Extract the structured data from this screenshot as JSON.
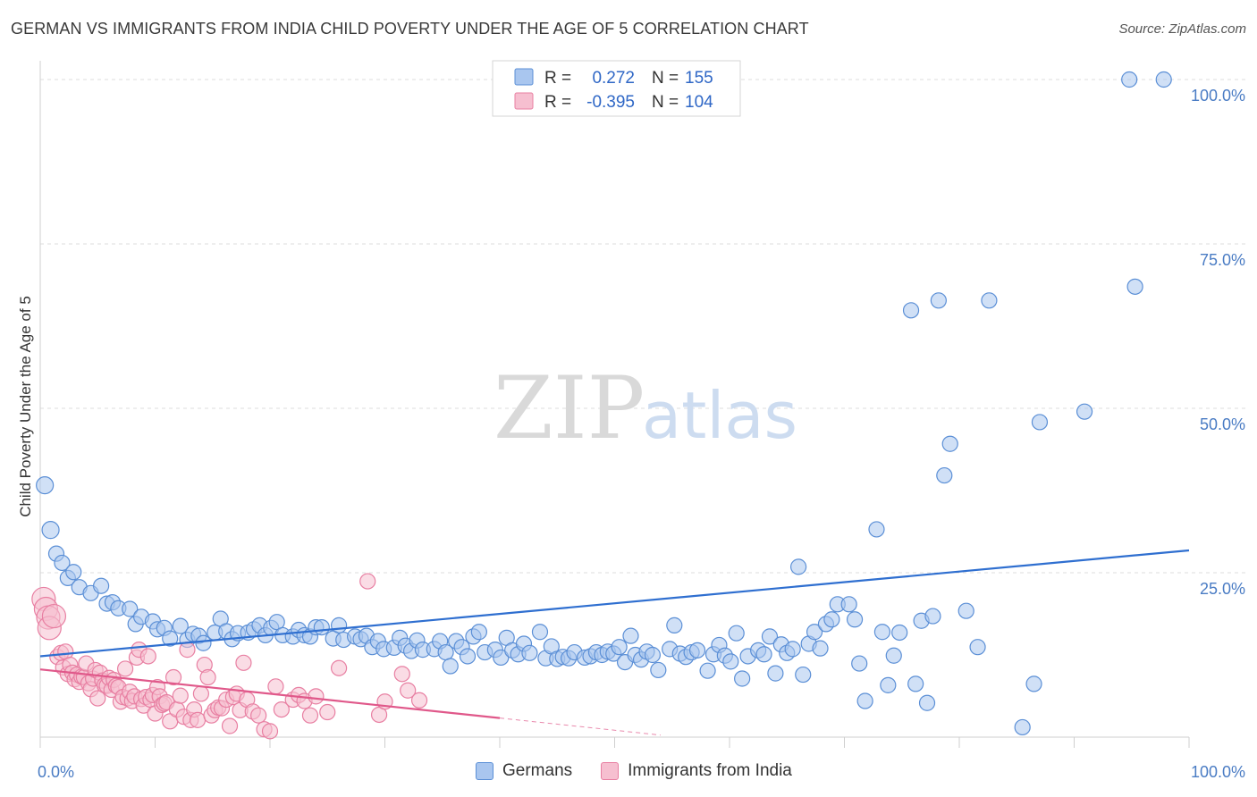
{
  "title": "GERMAN VS IMMIGRANTS FROM INDIA CHILD POVERTY UNDER THE AGE OF 5 CORRELATION CHART",
  "source": "Source: ZipAtlas.com",
  "watermark": {
    "zip": "ZIP",
    "atlas": "atlas"
  },
  "colors": {
    "blue": "#5b8fd6",
    "blue_fill": "#a9c6ef",
    "blue_line": "#2f6fd0",
    "pink": "#e87fa2",
    "pink_fill": "#f6bfd0",
    "pink_line": "#e0588a"
  },
  "legend": {
    "r_label": "R =",
    "n_label": "N =",
    "rows": [
      {
        "r": "0.272",
        "n": "155"
      },
      {
        "r": "-0.395",
        "n": "104"
      }
    ]
  },
  "bottom_legend": [
    "Germans",
    "Immigrants from India"
  ],
  "chart_data": {
    "type": "scatter",
    "ylabel": "Child Poverty Under the Age of 5",
    "xlim": [
      0,
      100
    ],
    "ylim": [
      0,
      100
    ],
    "x_tick_labels": [
      "0.0%",
      "100.0%"
    ],
    "y_ticks": [
      25,
      50,
      75,
      100
    ],
    "y_tick_labels": [
      "25.0%",
      "50.0%",
      "75.0%",
      "100.0%"
    ],
    "grid": true,
    "series": [
      {
        "name": "Germans",
        "color": "#5b8fd6",
        "trend": [
          [
            0,
            12.3
          ],
          [
            100,
            28.4
          ]
        ],
        "points": [
          [
            0.4,
            38.3
          ],
          [
            0.9,
            31.5
          ],
          [
            1.4,
            27.9
          ],
          [
            1.9,
            26.5
          ],
          [
            2.4,
            24.2
          ],
          [
            2.9,
            25.1
          ],
          [
            3.4,
            22.8
          ],
          [
            4.4,
            21.9
          ],
          [
            5.3,
            23.0
          ],
          [
            5.8,
            20.3
          ],
          [
            6.3,
            20.5
          ],
          [
            6.8,
            19.6
          ],
          [
            7.8,
            19.5
          ],
          [
            8.3,
            17.2
          ],
          [
            8.8,
            18.3
          ],
          [
            9.8,
            17.6
          ],
          [
            10.2,
            16.4
          ],
          [
            10.8,
            16.6
          ],
          [
            11.3,
            15.0
          ],
          [
            12.2,
            16.9
          ],
          [
            12.8,
            14.8
          ],
          [
            13.3,
            15.7
          ],
          [
            13.8,
            15.4
          ],
          [
            14.2,
            14.3
          ],
          [
            15.2,
            15.9
          ],
          [
            15.7,
            18.0
          ],
          [
            16.2,
            16.1
          ],
          [
            16.7,
            14.9
          ],
          [
            17.2,
            15.8
          ],
          [
            18.1,
            15.9
          ],
          [
            18.6,
            16.4
          ],
          [
            19.1,
            17.0
          ],
          [
            19.6,
            15.5
          ],
          [
            20.1,
            16.6
          ],
          [
            20.6,
            17.5
          ],
          [
            21.1,
            15.5
          ],
          [
            22.0,
            15.3
          ],
          [
            22.5,
            16.3
          ],
          [
            23.0,
            15.5
          ],
          [
            23.5,
            15.3
          ],
          [
            24.0,
            16.7
          ],
          [
            24.5,
            16.7
          ],
          [
            25.5,
            15.0
          ],
          [
            26.0,
            17.0
          ],
          [
            26.4,
            14.8
          ],
          [
            27.4,
            15.3
          ],
          [
            27.9,
            14.9
          ],
          [
            28.4,
            15.4
          ],
          [
            28.9,
            13.7
          ],
          [
            29.4,
            14.6
          ],
          [
            29.9,
            13.4
          ],
          [
            30.8,
            13.6
          ],
          [
            31.3,
            15.1
          ],
          [
            31.8,
            13.9
          ],
          [
            32.3,
            13.1
          ],
          [
            32.8,
            14.7
          ],
          [
            33.3,
            13.3
          ],
          [
            34.3,
            13.4
          ],
          [
            34.8,
            14.6
          ],
          [
            35.3,
            12.9
          ],
          [
            35.7,
            10.8
          ],
          [
            36.2,
            14.6
          ],
          [
            36.7,
            13.7
          ],
          [
            37.2,
            12.3
          ],
          [
            37.7,
            15.3
          ],
          [
            38.2,
            16.0
          ],
          [
            38.7,
            12.9
          ],
          [
            39.6,
            13.3
          ],
          [
            40.1,
            12.1
          ],
          [
            40.6,
            15.1
          ],
          [
            41.1,
            13.2
          ],
          [
            41.6,
            12.6
          ],
          [
            42.1,
            14.2
          ],
          [
            42.6,
            12.8
          ],
          [
            43.5,
            16.0
          ],
          [
            44.0,
            12.0
          ],
          [
            44.5,
            13.8
          ],
          [
            45.0,
            11.9
          ],
          [
            45.5,
            12.2
          ],
          [
            46.0,
            12.0
          ],
          [
            46.5,
            12.9
          ],
          [
            47.4,
            12.1
          ],
          [
            47.9,
            12.3
          ],
          [
            48.4,
            12.9
          ],
          [
            48.9,
            12.5
          ],
          [
            49.4,
            13.0
          ],
          [
            49.9,
            12.7
          ],
          [
            50.4,
            13.7
          ],
          [
            50.9,
            11.4
          ],
          [
            51.4,
            15.4
          ],
          [
            51.8,
            12.5
          ],
          [
            52.3,
            11.8
          ],
          [
            52.8,
            13.0
          ],
          [
            53.3,
            12.5
          ],
          [
            53.8,
            10.2
          ],
          [
            54.8,
            13.4
          ],
          [
            55.2,
            17.0
          ],
          [
            55.7,
            12.7
          ],
          [
            56.2,
            12.2
          ],
          [
            56.7,
            12.9
          ],
          [
            57.2,
            13.2
          ],
          [
            58.1,
            10.1
          ],
          [
            58.6,
            12.6
          ],
          [
            59.1,
            14.0
          ],
          [
            59.6,
            12.4
          ],
          [
            60.1,
            11.5
          ],
          [
            60.6,
            15.8
          ],
          [
            61.1,
            8.9
          ],
          [
            61.6,
            12.3
          ],
          [
            62.5,
            13.2
          ],
          [
            63.0,
            12.6
          ],
          [
            63.5,
            15.3
          ],
          [
            64.0,
            9.7
          ],
          [
            64.5,
            14.1
          ],
          [
            65.0,
            12.8
          ],
          [
            65.5,
            13.4
          ],
          [
            66.0,
            25.9
          ],
          [
            66.4,
            9.5
          ],
          [
            66.9,
            14.2
          ],
          [
            67.4,
            16.0
          ],
          [
            67.9,
            13.5
          ],
          [
            68.4,
            17.2
          ],
          [
            68.9,
            17.9
          ],
          [
            69.4,
            20.2
          ],
          [
            70.4,
            20.2
          ],
          [
            70.9,
            17.9
          ],
          [
            71.3,
            11.2
          ],
          [
            71.8,
            5.5
          ],
          [
            72.8,
            31.6
          ],
          [
            73.3,
            16.0
          ],
          [
            73.8,
            7.9
          ],
          [
            74.3,
            12.4
          ],
          [
            74.8,
            15.9
          ],
          [
            75.8,
            64.9
          ],
          [
            76.2,
            8.1
          ],
          [
            76.7,
            17.7
          ],
          [
            77.2,
            5.2
          ],
          [
            77.7,
            18.4
          ],
          [
            78.2,
            66.4
          ],
          [
            78.7,
            39.8
          ],
          [
            79.2,
            44.6
          ],
          [
            80.6,
            19.2
          ],
          [
            81.6,
            13.7
          ],
          [
            82.6,
            66.4
          ],
          [
            85.5,
            1.5
          ],
          [
            86.5,
            8.1
          ],
          [
            87.0,
            47.9
          ],
          [
            90.9,
            49.5
          ],
          [
            94.8,
            100.0
          ],
          [
            95.3,
            68.5
          ],
          [
            97.8,
            100.0
          ]
        ]
      },
      {
        "name": "Immigrants from India",
        "color": "#e87fa2",
        "trend": [
          [
            0,
            10.3
          ],
          [
            40,
            2.9
          ]
        ],
        "points": [
          [
            0.3,
            21.0
          ],
          [
            0.5,
            19.5
          ],
          [
            0.7,
            18.2
          ],
          [
            0.8,
            16.6
          ],
          [
            1.2,
            18.4
          ],
          [
            1.5,
            12.2
          ],
          [
            1.8,
            12.8
          ],
          [
            2.0,
            10.6
          ],
          [
            2.2,
            13.0
          ],
          [
            2.4,
            9.6
          ],
          [
            2.6,
            11.0
          ],
          [
            2.8,
            9.8
          ],
          [
            3.0,
            8.8
          ],
          [
            3.2,
            9.5
          ],
          [
            3.4,
            8.4
          ],
          [
            3.6,
            9.2
          ],
          [
            3.8,
            9.1
          ],
          [
            4.0,
            11.2
          ],
          [
            4.2,
            8.2
          ],
          [
            4.4,
            7.3
          ],
          [
            4.6,
            8.9
          ],
          [
            4.8,
            10.2
          ],
          [
            5.0,
            5.9
          ],
          [
            5.2,
            9.8
          ],
          [
            5.4,
            8.6
          ],
          [
            5.6,
            7.9
          ],
          [
            5.8,
            7.8
          ],
          [
            6.0,
            9.0
          ],
          [
            6.2,
            7.2
          ],
          [
            6.4,
            8.7
          ],
          [
            6.6,
            7.8
          ],
          [
            6.8,
            7.6
          ],
          [
            7.0,
            5.4
          ],
          [
            7.2,
            6.1
          ],
          [
            7.4,
            10.4
          ],
          [
            7.6,
            5.9
          ],
          [
            7.8,
            6.9
          ],
          [
            8.0,
            5.5
          ],
          [
            8.2,
            6.2
          ],
          [
            8.4,
            12.1
          ],
          [
            8.6,
            13.3
          ],
          [
            8.8,
            5.8
          ],
          [
            9.0,
            4.8
          ],
          [
            9.2,
            6.1
          ],
          [
            9.4,
            12.3
          ],
          [
            9.6,
            5.7
          ],
          [
            9.8,
            6.4
          ],
          [
            10.0,
            3.6
          ],
          [
            10.2,
            7.6
          ],
          [
            10.4,
            6.2
          ],
          [
            10.6,
            4.9
          ],
          [
            10.8,
            5.1
          ],
          [
            11.0,
            5.3
          ],
          [
            11.3,
            2.4
          ],
          [
            11.6,
            9.1
          ],
          [
            11.9,
            4.2
          ],
          [
            12.2,
            6.3
          ],
          [
            12.5,
            3.1
          ],
          [
            12.8,
            13.3
          ],
          [
            13.1,
            2.6
          ],
          [
            13.4,
            4.2
          ],
          [
            13.7,
            2.6
          ],
          [
            14.0,
            6.6
          ],
          [
            14.3,
            11.0
          ],
          [
            14.6,
            9.1
          ],
          [
            14.9,
            3.3
          ],
          [
            15.2,
            4.1
          ],
          [
            15.5,
            4.5
          ],
          [
            15.8,
            4.4
          ],
          [
            16.2,
            5.7
          ],
          [
            16.5,
            1.7
          ],
          [
            16.8,
            6.1
          ],
          [
            17.1,
            6.6
          ],
          [
            17.4,
            4.1
          ],
          [
            17.7,
            11.3
          ],
          [
            18.0,
            5.7
          ],
          [
            18.5,
            3.9
          ],
          [
            19.0,
            3.3
          ],
          [
            19.5,
            1.2
          ],
          [
            20.0,
            0.9
          ],
          [
            20.5,
            7.7
          ],
          [
            21.0,
            4.2
          ],
          [
            22.0,
            5.7
          ],
          [
            22.5,
            6.4
          ],
          [
            23.0,
            5.5
          ],
          [
            23.5,
            3.3
          ],
          [
            24.0,
            6.2
          ],
          [
            25.0,
            3.8
          ],
          [
            26.0,
            10.5
          ],
          [
            28.5,
            23.7
          ],
          [
            29.5,
            3.4
          ],
          [
            30.0,
            5.4
          ],
          [
            31.5,
            9.6
          ],
          [
            32.0,
            7.1
          ],
          [
            33.0,
            5.6
          ]
        ]
      }
    ]
  }
}
